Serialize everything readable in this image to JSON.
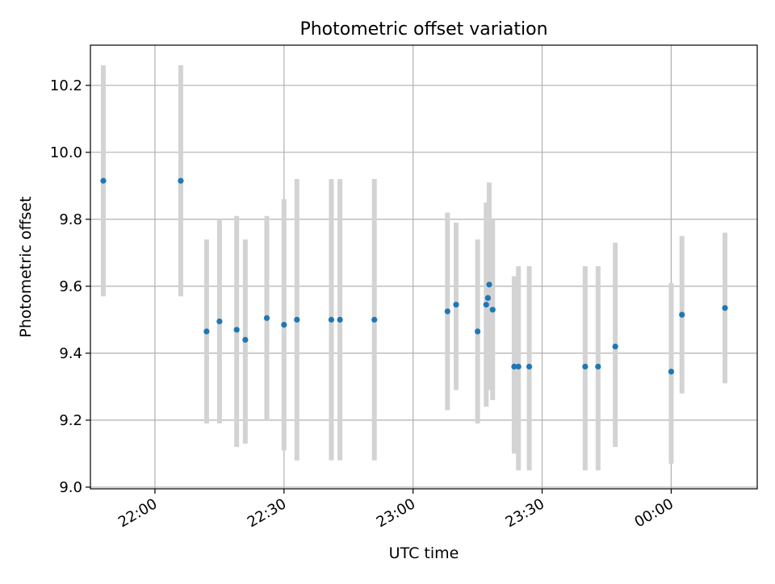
{
  "chart_data": {
    "type": "scatter",
    "title": "Photometric offset variation",
    "xlabel": "UTC time",
    "ylabel": "Photometric offset",
    "x_ticks": [
      "22:00",
      "22:30",
      "23:00",
      "23:30",
      "00:00"
    ],
    "y_ticks": [
      "9.0",
      "9.2",
      "9.4",
      "9.6",
      "9.8",
      "10.0",
      "10.2"
    ],
    "xlim": [
      "21:45",
      "00:20"
    ],
    "ylim": [
      8.995,
      10.32
    ],
    "grid": true,
    "colors": {
      "point": "#1f77b4",
      "errorbar": "#d3d3d3",
      "grid": "#b0b0b0"
    },
    "points": [
      {
        "x": "21:48",
        "y": 9.915,
        "low": 9.57,
        "high": 10.26
      },
      {
        "x": "22:06",
        "y": 9.915,
        "low": 9.57,
        "high": 10.26
      },
      {
        "x": "22:12",
        "y": 9.465,
        "low": 9.19,
        "high": 9.74
      },
      {
        "x": "22:15",
        "y": 9.495,
        "low": 9.19,
        "high": 9.8
      },
      {
        "x": "22:19",
        "y": 9.47,
        "low": 9.12,
        "high": 9.81
      },
      {
        "x": "22:21",
        "y": 9.44,
        "low": 9.13,
        "high": 9.74
      },
      {
        "x": "22:26",
        "y": 9.505,
        "low": 9.2,
        "high": 9.81
      },
      {
        "x": "22:30",
        "y": 9.485,
        "low": 9.11,
        "high": 9.86
      },
      {
        "x": "22:33",
        "y": 9.5,
        "low": 9.08,
        "high": 9.92
      },
      {
        "x": "22:41",
        "y": 9.5,
        "low": 9.08,
        "high": 9.92
      },
      {
        "x": "22:43",
        "y": 9.5,
        "low": 9.08,
        "high": 9.92
      },
      {
        "x": "22:51",
        "y": 9.5,
        "low": 9.08,
        "high": 9.92
      },
      {
        "x": "23:08",
        "y": 9.525,
        "low": 9.23,
        "high": 9.82
      },
      {
        "x": "23:10",
        "y": 9.545,
        "low": 9.29,
        "high": 9.79
      },
      {
        "x": "23:15",
        "y": 9.465,
        "low": 9.19,
        "high": 9.74
      },
      {
        "x": "23:17",
        "y": 9.545,
        "low": 9.24,
        "high": 9.85
      },
      {
        "x": "23:17.4",
        "y": 9.565,
        "low": 9.32,
        "high": 9.81
      },
      {
        "x": "23:17.7",
        "y": 9.605,
        "low": 9.29,
        "high": 9.91
      },
      {
        "x": "23:18.5",
        "y": 9.53,
        "low": 9.26,
        "high": 9.8
      },
      {
        "x": "23:23.5",
        "y": 9.36,
        "low": 9.1,
        "high": 9.63
      },
      {
        "x": "23:24.5",
        "y": 9.36,
        "low": 9.05,
        "high": 9.66
      },
      {
        "x": "23:27",
        "y": 9.36,
        "low": 9.05,
        "high": 9.66
      },
      {
        "x": "23:40",
        "y": 9.36,
        "low": 9.05,
        "high": 9.66
      },
      {
        "x": "23:43",
        "y": 9.36,
        "low": 9.05,
        "high": 9.66
      },
      {
        "x": "23:47",
        "y": 9.42,
        "low": 9.12,
        "high": 9.73
      },
      {
        "x": "00:00",
        "y": 9.345,
        "low": 9.07,
        "high": 9.61
      },
      {
        "x": "00:02.5",
        "y": 9.515,
        "low": 9.28,
        "high": 9.75
      },
      {
        "x": "00:12.5",
        "y": 9.535,
        "low": 9.31,
        "high": 9.76
      }
    ]
  }
}
